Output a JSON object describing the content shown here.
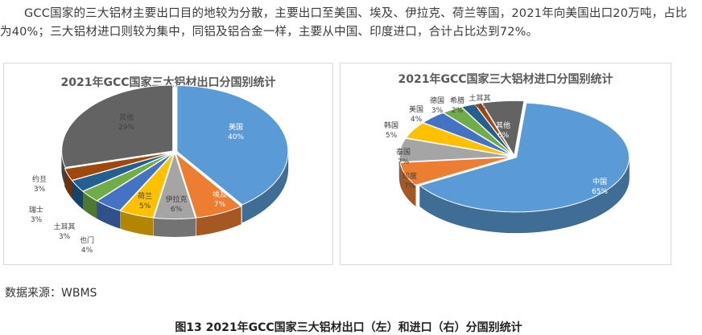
{
  "article": {
    "paragraph": "GCC国家的三大铝材主要出口目的地较为分散，主要出口至美国、埃及、伊拉克、荷兰等国，2021年向美国出口20万吨，占比为40%；三大铝材进口则较为集中，同铝及铝合金一样，主要从中国、印度进口，合计占比达到72%。",
    "source": "数据来源：WBMS",
    "caption": "图13 2021年GCC国家三大铝材出口（左）和进口（右）分国别统计"
  },
  "chart_data": [
    {
      "type": "pie",
      "title": "2021年GCC国家三大铝材出口分国别统计",
      "slices": [
        {
          "label": "美国",
          "value": 40,
          "text": "40%",
          "color": "#5b9bd5"
        },
        {
          "label": "埃及",
          "value": 7,
          "text": "7%",
          "color": "#ed7d31"
        },
        {
          "label": "伊拉克",
          "value": 6,
          "text": "6%",
          "color": "#a5a5a5"
        },
        {
          "label": "荷兰",
          "value": 5,
          "text": "5%",
          "color": "#ffc000"
        },
        {
          "label": "也门",
          "value": 4,
          "text": "4%",
          "color": "#4472c4"
        },
        {
          "label": "土耳其",
          "value": 3,
          "text": "3%",
          "color": "#70ad47"
        },
        {
          "label": "瑞士",
          "value": 3,
          "text": "3%",
          "color": "#255e91"
        },
        {
          "label": "约旦",
          "value": 3,
          "text": "3%",
          "color": "#9e480e"
        },
        {
          "label": "其他",
          "value": 29,
          "text": "29%",
          "color": "#636363"
        }
      ]
    },
    {
      "type": "pie",
      "title": "2021年GCC国家三大铝材进口分国别统计",
      "slices": [
        {
          "label": "中国",
          "value": 65,
          "text": "65%",
          "color": "#5b9bd5"
        },
        {
          "label": "印度",
          "value": 7,
          "text": "7%",
          "color": "#ed7d31"
        },
        {
          "label": "泰国",
          "value": 7,
          "text": "7%",
          "color": "#a5a5a5"
        },
        {
          "label": "韩国",
          "value": 5,
          "text": "5%",
          "color": "#ffc000"
        },
        {
          "label": "美国",
          "value": 4,
          "text": "4%",
          "color": "#4472c4"
        },
        {
          "label": "德国",
          "value": 3,
          "text": "3%",
          "color": "#70ad47"
        },
        {
          "label": "希腊",
          "value": 2,
          "text": "2%",
          "color": "#255e91"
        },
        {
          "label": "土耳其",
          "value": 1,
          "text": "1%",
          "color": "#9e480e"
        },
        {
          "label": "其他",
          "value": 6,
          "text": "6%",
          "color": "#636363"
        }
      ]
    }
  ]
}
